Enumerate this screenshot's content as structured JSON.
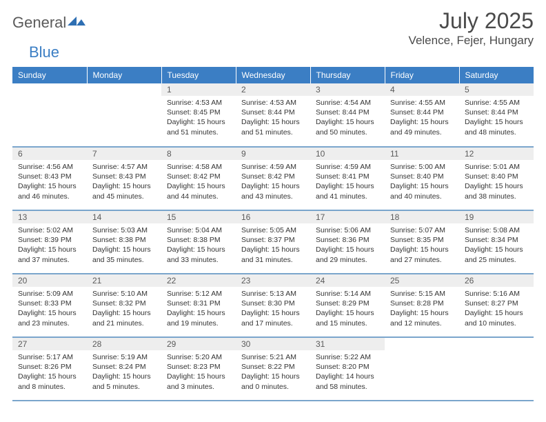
{
  "brand": {
    "name_a": "General",
    "name_b": "Blue"
  },
  "header": {
    "month_title": "July 2025",
    "location": "Velence, Fejer, Hungary"
  },
  "colors": {
    "header_bg": "#3b7ec4",
    "header_text": "#ffffff",
    "daynum_bg": "#eeeeee",
    "border": "#7aa5cc",
    "body_text": "#333333"
  },
  "day_headers": [
    "Sunday",
    "Monday",
    "Tuesday",
    "Wednesday",
    "Thursday",
    "Friday",
    "Saturday"
  ],
  "weeks": [
    [
      null,
      null,
      {
        "n": "1",
        "sr": "Sunrise: 4:53 AM",
        "ss": "Sunset: 8:45 PM",
        "d1": "Daylight: 15 hours",
        "d2": "and 51 minutes."
      },
      {
        "n": "2",
        "sr": "Sunrise: 4:53 AM",
        "ss": "Sunset: 8:44 PM",
        "d1": "Daylight: 15 hours",
        "d2": "and 51 minutes."
      },
      {
        "n": "3",
        "sr": "Sunrise: 4:54 AM",
        "ss": "Sunset: 8:44 PM",
        "d1": "Daylight: 15 hours",
        "d2": "and 50 minutes."
      },
      {
        "n": "4",
        "sr": "Sunrise: 4:55 AM",
        "ss": "Sunset: 8:44 PM",
        "d1": "Daylight: 15 hours",
        "d2": "and 49 minutes."
      },
      {
        "n": "5",
        "sr": "Sunrise: 4:55 AM",
        "ss": "Sunset: 8:44 PM",
        "d1": "Daylight: 15 hours",
        "d2": "and 48 minutes."
      }
    ],
    [
      {
        "n": "6",
        "sr": "Sunrise: 4:56 AM",
        "ss": "Sunset: 8:43 PM",
        "d1": "Daylight: 15 hours",
        "d2": "and 46 minutes."
      },
      {
        "n": "7",
        "sr": "Sunrise: 4:57 AM",
        "ss": "Sunset: 8:43 PM",
        "d1": "Daylight: 15 hours",
        "d2": "and 45 minutes."
      },
      {
        "n": "8",
        "sr": "Sunrise: 4:58 AM",
        "ss": "Sunset: 8:42 PM",
        "d1": "Daylight: 15 hours",
        "d2": "and 44 minutes."
      },
      {
        "n": "9",
        "sr": "Sunrise: 4:59 AM",
        "ss": "Sunset: 8:42 PM",
        "d1": "Daylight: 15 hours",
        "d2": "and 43 minutes."
      },
      {
        "n": "10",
        "sr": "Sunrise: 4:59 AM",
        "ss": "Sunset: 8:41 PM",
        "d1": "Daylight: 15 hours",
        "d2": "and 41 minutes."
      },
      {
        "n": "11",
        "sr": "Sunrise: 5:00 AM",
        "ss": "Sunset: 8:40 PM",
        "d1": "Daylight: 15 hours",
        "d2": "and 40 minutes."
      },
      {
        "n": "12",
        "sr": "Sunrise: 5:01 AM",
        "ss": "Sunset: 8:40 PM",
        "d1": "Daylight: 15 hours",
        "d2": "and 38 minutes."
      }
    ],
    [
      {
        "n": "13",
        "sr": "Sunrise: 5:02 AM",
        "ss": "Sunset: 8:39 PM",
        "d1": "Daylight: 15 hours",
        "d2": "and 37 minutes."
      },
      {
        "n": "14",
        "sr": "Sunrise: 5:03 AM",
        "ss": "Sunset: 8:38 PM",
        "d1": "Daylight: 15 hours",
        "d2": "and 35 minutes."
      },
      {
        "n": "15",
        "sr": "Sunrise: 5:04 AM",
        "ss": "Sunset: 8:38 PM",
        "d1": "Daylight: 15 hours",
        "d2": "and 33 minutes."
      },
      {
        "n": "16",
        "sr": "Sunrise: 5:05 AM",
        "ss": "Sunset: 8:37 PM",
        "d1": "Daylight: 15 hours",
        "d2": "and 31 minutes."
      },
      {
        "n": "17",
        "sr": "Sunrise: 5:06 AM",
        "ss": "Sunset: 8:36 PM",
        "d1": "Daylight: 15 hours",
        "d2": "and 29 minutes."
      },
      {
        "n": "18",
        "sr": "Sunrise: 5:07 AM",
        "ss": "Sunset: 8:35 PM",
        "d1": "Daylight: 15 hours",
        "d2": "and 27 minutes."
      },
      {
        "n": "19",
        "sr": "Sunrise: 5:08 AM",
        "ss": "Sunset: 8:34 PM",
        "d1": "Daylight: 15 hours",
        "d2": "and 25 minutes."
      }
    ],
    [
      {
        "n": "20",
        "sr": "Sunrise: 5:09 AM",
        "ss": "Sunset: 8:33 PM",
        "d1": "Daylight: 15 hours",
        "d2": "and 23 minutes."
      },
      {
        "n": "21",
        "sr": "Sunrise: 5:10 AM",
        "ss": "Sunset: 8:32 PM",
        "d1": "Daylight: 15 hours",
        "d2": "and 21 minutes."
      },
      {
        "n": "22",
        "sr": "Sunrise: 5:12 AM",
        "ss": "Sunset: 8:31 PM",
        "d1": "Daylight: 15 hours",
        "d2": "and 19 minutes."
      },
      {
        "n": "23",
        "sr": "Sunrise: 5:13 AM",
        "ss": "Sunset: 8:30 PM",
        "d1": "Daylight: 15 hours",
        "d2": "and 17 minutes."
      },
      {
        "n": "24",
        "sr": "Sunrise: 5:14 AM",
        "ss": "Sunset: 8:29 PM",
        "d1": "Daylight: 15 hours",
        "d2": "and 15 minutes."
      },
      {
        "n": "25",
        "sr": "Sunrise: 5:15 AM",
        "ss": "Sunset: 8:28 PM",
        "d1": "Daylight: 15 hours",
        "d2": "and 12 minutes."
      },
      {
        "n": "26",
        "sr": "Sunrise: 5:16 AM",
        "ss": "Sunset: 8:27 PM",
        "d1": "Daylight: 15 hours",
        "d2": "and 10 minutes."
      }
    ],
    [
      {
        "n": "27",
        "sr": "Sunrise: 5:17 AM",
        "ss": "Sunset: 8:26 PM",
        "d1": "Daylight: 15 hours",
        "d2": "and 8 minutes."
      },
      {
        "n": "28",
        "sr": "Sunrise: 5:19 AM",
        "ss": "Sunset: 8:24 PM",
        "d1": "Daylight: 15 hours",
        "d2": "and 5 minutes."
      },
      {
        "n": "29",
        "sr": "Sunrise: 5:20 AM",
        "ss": "Sunset: 8:23 PM",
        "d1": "Daylight: 15 hours",
        "d2": "and 3 minutes."
      },
      {
        "n": "30",
        "sr": "Sunrise: 5:21 AM",
        "ss": "Sunset: 8:22 PM",
        "d1": "Daylight: 15 hours",
        "d2": "and 0 minutes."
      },
      {
        "n": "31",
        "sr": "Sunrise: 5:22 AM",
        "ss": "Sunset: 8:20 PM",
        "d1": "Daylight: 14 hours",
        "d2": "and 58 minutes."
      },
      null,
      null
    ]
  ]
}
